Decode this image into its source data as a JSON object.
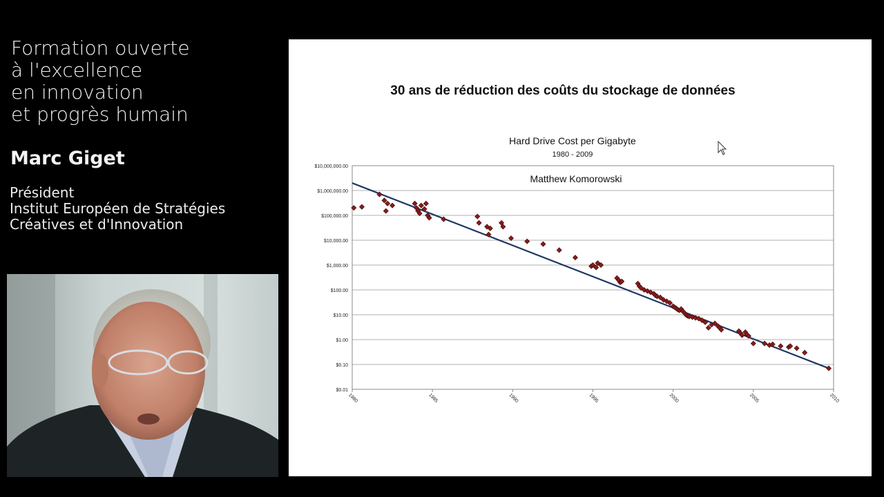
{
  "course": {
    "title_lines": [
      "Formation ouverte",
      "à l'excellence",
      "en innovation",
      "et progrès humain"
    ]
  },
  "speaker": {
    "name": "Marc Giget",
    "role_lines": [
      "Président",
      "Institut Européen de Stratégies",
      "Créatives et d'Innovation"
    ]
  },
  "slide": {
    "title": "30 ans de réduction des coûts du stockage de données"
  },
  "chart_data": {
    "type": "scatter",
    "title": "Hard Drive Cost per Gigabyte",
    "subtitle": "1980 - 2009",
    "annotation": "Matthew Komorowski",
    "xlabel": "",
    "ylabel": "",
    "x_scale": "linear",
    "y_scale": "log",
    "xlim": [
      1980,
      2010
    ],
    "ylim": [
      0.01,
      10000000
    ],
    "x_ticks": [
      "1980",
      "1985",
      "1990",
      "1995",
      "2000",
      "2005",
      "2010"
    ],
    "y_ticks": [
      "$0.01",
      "$0.10",
      "$1.00",
      "$10.00",
      "$100.00",
      "$1,000.00",
      "$10,000.00",
      "$100,000.00",
      "$1,000,000.00",
      "$10,000,000.00"
    ],
    "grid": true,
    "legend": "none",
    "colors": {
      "points": "#8b1a1a",
      "trend": "#1f3864",
      "grid": "#b0b0b0"
    },
    "trend_line": {
      "x": [
        1980,
        2009.7
      ],
      "y": [
        2000000,
        0.07
      ]
    },
    "points": [
      [
        1980.1,
        200000
      ],
      [
        1980.6,
        220000
      ],
      [
        1981.7,
        700000
      ],
      [
        1982.0,
        400000
      ],
      [
        1982.1,
        150000
      ],
      [
        1982.2,
        300000
      ],
      [
        1982.5,
        250000
      ],
      [
        1983.9,
        300000
      ],
      [
        1984.0,
        200000
      ],
      [
        1984.1,
        150000
      ],
      [
        1984.2,
        120000
      ],
      [
        1984.3,
        250000
      ],
      [
        1984.5,
        180000
      ],
      [
        1984.6,
        300000
      ],
      [
        1984.7,
        100000
      ],
      [
        1984.8,
        80000
      ],
      [
        1985.7,
        70000
      ],
      [
        1987.8,
        90000
      ],
      [
        1987.9,
        50000
      ],
      [
        1988.4,
        35000
      ],
      [
        1988.5,
        17000
      ],
      [
        1988.6,
        30000
      ],
      [
        1989.3,
        50000
      ],
      [
        1989.4,
        35000
      ],
      [
        1989.9,
        12000
      ],
      [
        1990.9,
        9000
      ],
      [
        1991.9,
        7000
      ],
      [
        1992.9,
        4000
      ],
      [
        1993.9,
        2000
      ],
      [
        1994.9,
        900
      ],
      [
        1995.0,
        1000
      ],
      [
        1995.2,
        800
      ],
      [
        1995.3,
        1200
      ],
      [
        1995.5,
        1000
      ],
      [
        1996.5,
        300
      ],
      [
        1996.6,
        250
      ],
      [
        1996.7,
        200
      ],
      [
        1996.8,
        220
      ],
      [
        1997.8,
        180
      ],
      [
        1997.9,
        140
      ],
      [
        1998.0,
        120
      ],
      [
        1998.2,
        100
      ],
      [
        1998.4,
        90
      ],
      [
        1998.6,
        80
      ],
      [
        1998.8,
        70
      ],
      [
        1998.9,
        60
      ],
      [
        1999.0,
        55
      ],
      [
        1999.2,
        50
      ],
      [
        1999.4,
        40
      ],
      [
        1999.6,
        35
      ],
      [
        1999.8,
        30
      ],
      [
        2000.0,
        22
      ],
      [
        2000.1,
        20
      ],
      [
        2000.2,
        18
      ],
      [
        2000.3,
        16
      ],
      [
        2000.4,
        15
      ],
      [
        2000.5,
        17
      ],
      [
        2000.6,
        14
      ],
      [
        2000.7,
        12
      ],
      [
        2000.8,
        10
      ],
      [
        2000.9,
        9
      ],
      [
        2001.0,
        8.5
      ],
      [
        2001.2,
        8
      ],
      [
        2001.4,
        7.5
      ],
      [
        2001.6,
        7
      ],
      [
        2001.8,
        6
      ],
      [
        2002.0,
        5
      ],
      [
        2002.2,
        3
      ],
      [
        2002.4,
        4
      ],
      [
        2002.6,
        4.5
      ],
      [
        2002.8,
        3.5
      ],
      [
        2002.9,
        3
      ],
      [
        2003.0,
        2.5
      ],
      [
        2004.1,
        2.2
      ],
      [
        2004.2,
        1.8
      ],
      [
        2004.3,
        1.5
      ],
      [
        2004.5,
        2
      ],
      [
        2004.6,
        1.6
      ],
      [
        2004.7,
        1.4
      ],
      [
        2005.0,
        0.7
      ],
      [
        2005.7,
        0.7
      ],
      [
        2006.0,
        0.6
      ],
      [
        2006.2,
        0.65
      ],
      [
        2006.7,
        0.55
      ],
      [
        2007.2,
        0.5
      ],
      [
        2007.3,
        0.55
      ],
      [
        2007.7,
        0.45
      ],
      [
        2008.2,
        0.3
      ],
      [
        2009.7,
        0.07
      ]
    ]
  }
}
